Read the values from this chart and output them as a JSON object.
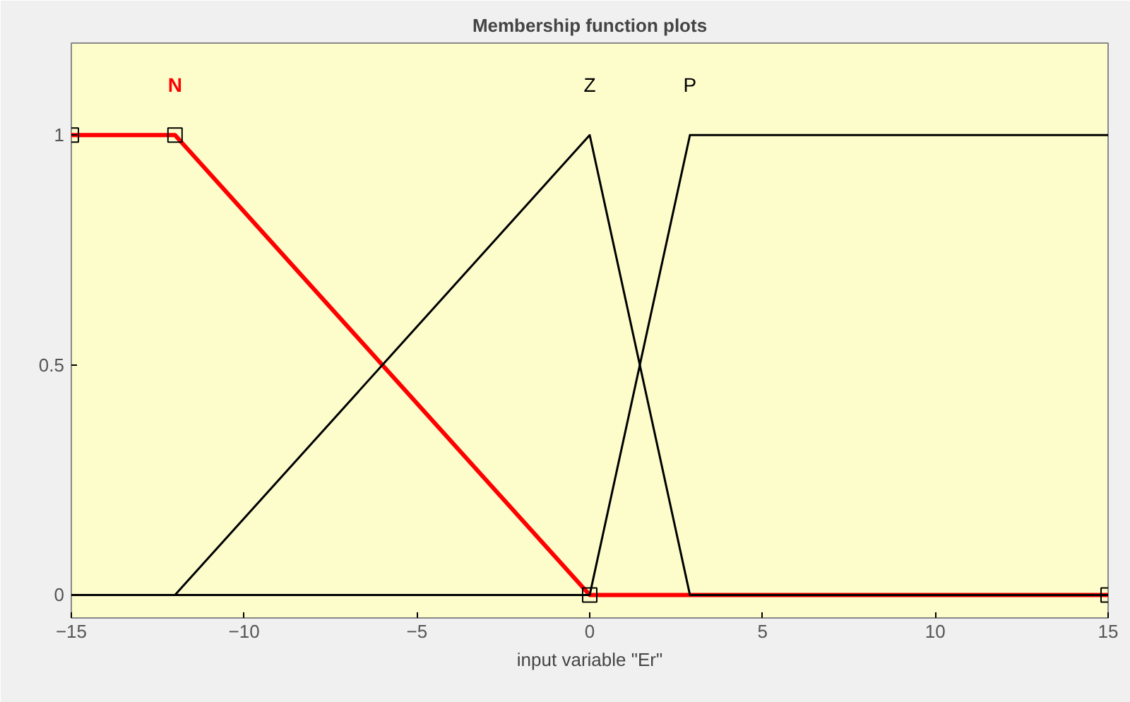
{
  "chart_data": {
    "type": "line",
    "title": "Membership function plots",
    "xlabel": "input variable \"Er\"",
    "xlim": [
      -15,
      15
    ],
    "xticks": [
      -15,
      -10,
      -5,
      0,
      5,
      10,
      15
    ],
    "ylim": [
      -0.05,
      1.2
    ],
    "yticks": [
      0,
      0.5,
      1
    ],
    "grid": false,
    "legend": false,
    "line_style": "solid",
    "series": [
      {
        "name": "N",
        "color": "#ff0000",
        "marker": "square",
        "x": [
          -15,
          -12,
          0,
          15
        ],
        "values": [
          1,
          1,
          0,
          0
        ]
      },
      {
        "name": "Z",
        "color": "#000000",
        "marker": "none",
        "x": [
          -15,
          -12,
          0,
          2.9,
          15
        ],
        "values": [
          0,
          0,
          1,
          0,
          0
        ]
      },
      {
        "name": "P",
        "color": "#000000",
        "marker": "none",
        "x": [
          -15,
          0,
          2.9,
          15
        ],
        "values": [
          0,
          0,
          1,
          1
        ]
      }
    ]
  }
}
